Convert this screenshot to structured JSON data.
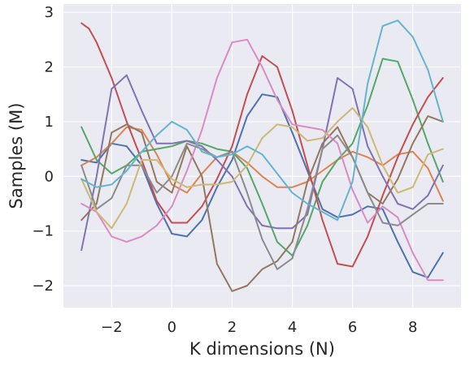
{
  "chart_data": {
    "type": "line",
    "title": "",
    "xlabel": "K dimensions (N)",
    "ylabel": "Samples (M)",
    "xlim": [
      -3.6,
      9.6
    ],
    "ylim": [
      -2.4,
      3.15
    ],
    "xticks": [
      -2,
      0,
      2,
      4,
      6,
      8
    ],
    "yticks": [
      -2,
      -1,
      0,
      1,
      2,
      3
    ],
    "xtick_labels": [
      "−2",
      "0",
      "2",
      "4",
      "6",
      "8"
    ],
    "ytick_labels": [
      "−2",
      "−1",
      "0",
      "1",
      "2",
      "3"
    ],
    "grid": true,
    "background": "#EAEAF2",
    "legend": "none",
    "series": [
      {
        "color": "#4C72B0",
        "x": [
          -3,
          -2.5,
          -2,
          -1.5,
          -1,
          -0.5,
          0,
          0.5,
          1,
          1.5,
          2,
          2.5,
          3,
          3.5,
          4,
          4.5,
          5,
          5.5,
          6,
          6.5,
          7,
          7.5,
          8,
          8.5,
          9
        ],
        "y": [
          0.3,
          0.25,
          0.6,
          0.55,
          0.2,
          -0.5,
          -1.05,
          -1.1,
          -0.8,
          -0.2,
          0.3,
          1.1,
          1.5,
          1.45,
          0.8,
          0.1,
          -0.6,
          -0.75,
          -0.7,
          -0.55,
          -0.6,
          -1.2,
          -1.75,
          -1.85,
          -1.4
        ]
      },
      {
        "color": "#DD8452",
        "x": [
          -3,
          -2.5,
          -2,
          -1.5,
          -1,
          -0.5,
          0,
          0.5,
          1,
          1.5,
          2,
          2.5,
          3,
          3.5,
          4,
          4.5,
          5,
          5.5,
          6,
          6.5,
          7,
          7.5,
          8,
          8.5,
          9
        ],
        "y": [
          0.2,
          0.35,
          0.6,
          0.9,
          0.85,
          0.4,
          -0.15,
          -0.3,
          0.05,
          0.35,
          0.45,
          0.25,
          0,
          -0.2,
          -0.2,
          -0.1,
          0.1,
          0.3,
          0.45,
          0.35,
          0.2,
          0.4,
          0.45,
          0.15,
          -0.45
        ]
      },
      {
        "color": "#55A868",
        "x": [
          -3,
          -2.5,
          -2,
          -1.5,
          -1,
          -0.5,
          0,
          0.5,
          1,
          1.5,
          2,
          2.5,
          3,
          3.5,
          4,
          4.5,
          5,
          5.5,
          6,
          6.5,
          7,
          7.5,
          8,
          8.5,
          9
        ],
        "y": [
          0.9,
          0.3,
          0.05,
          0.2,
          0.45,
          0.5,
          0.55,
          0.65,
          0.6,
          0.5,
          0.45,
          0.15,
          -0.5,
          -1.2,
          -1.45,
          -0.9,
          -0.1,
          0.3,
          0.6,
          1.3,
          2.15,
          2.1,
          1.4,
          0.6,
          -0.1
        ]
      },
      {
        "color": "#C44E52",
        "x": [
          -3,
          -2.75,
          -2.5,
          -2,
          -1.5,
          -1,
          -0.5,
          0,
          0.5,
          1,
          1.5,
          2,
          2.5,
          3,
          3.5,
          4,
          4.5,
          5,
          5.5,
          6,
          6.5,
          7,
          7.5,
          8,
          8.5,
          9
        ],
        "y": [
          2.8,
          2.7,
          2.45,
          1.8,
          1.0,
          0.3,
          -0.45,
          -0.85,
          -0.85,
          -0.55,
          -0.05,
          0.55,
          1.5,
          2.2,
          2.0,
          1.2,
          0.2,
          -0.8,
          -1.6,
          -1.65,
          -1.1,
          -0.35,
          0.35,
          0.95,
          1.45,
          1.8
        ]
      },
      {
        "color": "#8172B3",
        "x": [
          -3,
          -2.5,
          -2,
          -1.5,
          -1,
          -0.5,
          0,
          0.5,
          1,
          1.5,
          2,
          2.5,
          3,
          3.5,
          4,
          4.5,
          5,
          5.5,
          6,
          6.5,
          7,
          7.5,
          8,
          8.5,
          9
        ],
        "y": [
          -1.35,
          0.0,
          1.6,
          1.85,
          1.2,
          0.6,
          0.6,
          0.65,
          0.55,
          0.3,
          0.0,
          -0.55,
          -0.9,
          -0.95,
          -0.95,
          -0.7,
          0.5,
          1.8,
          1.6,
          0.55,
          0.0,
          -0.5,
          -0.6,
          -0.35,
          0.2
        ]
      },
      {
        "color": "#937860",
        "x": [
          -3,
          -2.5,
          -2,
          -1.5,
          -1,
          -0.5,
          0,
          0.5,
          1,
          1.5,
          2,
          2.5,
          3,
          3.5,
          4,
          4.5,
          5,
          5.5,
          6,
          6.5,
          7,
          7.5,
          8,
          8.5,
          9
        ],
        "y": [
          -0.8,
          -0.5,
          0.8,
          0.95,
          0.8,
          -0.1,
          -0.3,
          0.55,
          0.0,
          -1.6,
          -2.1,
          -2.0,
          -1.7,
          -1.55,
          -1.2,
          -0.1,
          0.6,
          0.9,
          0.35,
          -0.3,
          -0.5,
          -0.05,
          0.6,
          1.1,
          1.0
        ]
      },
      {
        "color": "#DA8BC3",
        "x": [
          -3,
          -2.5,
          -2,
          -1.5,
          -1,
          -0.5,
          0,
          0.5,
          1,
          1.5,
          2,
          2.5,
          3,
          3.5,
          4,
          4.5,
          5,
          5.5,
          6,
          6.5,
          7,
          7.5,
          8,
          8.5,
          9
        ],
        "y": [
          -0.5,
          -0.65,
          -1.1,
          -1.2,
          -1.1,
          -0.9,
          -0.55,
          0.1,
          0.85,
          1.8,
          2.45,
          2.5,
          2.0,
          1.4,
          0.95,
          0.9,
          0.85,
          0.6,
          -0.25,
          -0.85,
          -0.55,
          -0.75,
          -1.4,
          -1.9,
          -1.9
        ]
      },
      {
        "color": "#8C8C8C",
        "x": [
          -3,
          -2.5,
          -2,
          -1.5,
          -1,
          -0.5,
          0,
          0.5,
          1,
          1.5,
          2,
          2.5,
          3,
          3.5,
          4,
          4.5,
          5,
          5.5,
          6,
          6.5,
          7,
          7.5,
          8,
          8.5,
          9
        ],
        "y": [
          0.2,
          -0.6,
          -0.4,
          0.2,
          0.2,
          -0.3,
          0.0,
          0.6,
          0.5,
          0.35,
          0.45,
          -0.3,
          -1.15,
          -1.7,
          -1.5,
          -0.6,
          0.5,
          0.75,
          0.35,
          -0.3,
          -0.85,
          -0.9,
          -0.7,
          -0.5,
          -0.5
        ]
      },
      {
        "color": "#CCB974",
        "x": [
          -3,
          -2.5,
          -2,
          -1.5,
          -1,
          -0.5,
          0,
          0.5,
          1,
          1.5,
          2,
          2.5,
          3,
          3.5,
          4,
          4.5,
          5,
          5.5,
          6,
          6.5,
          7,
          7.5,
          8,
          8.5,
          9
        ],
        "y": [
          -0.05,
          -0.65,
          -0.95,
          -0.5,
          0.3,
          0.3,
          -0.05,
          -0.2,
          -0.15,
          -0.15,
          -0.1,
          0.2,
          0.7,
          0.95,
          0.9,
          0.65,
          0.7,
          1.0,
          1.25,
          0.9,
          0.2,
          -0.3,
          -0.2,
          0.4,
          0.5
        ]
      },
      {
        "color": "#64B5CD",
        "x": [
          -3,
          -2.5,
          -2,
          -1.5,
          -1,
          -0.5,
          0,
          0.5,
          1,
          1.5,
          2,
          2.5,
          3,
          3.5,
          4,
          4.5,
          5,
          5.5,
          6,
          6.5,
          7,
          7.5,
          8,
          8.5,
          9
        ],
        "y": [
          -0.05,
          -0.2,
          -0.15,
          0.1,
          0.45,
          0.75,
          1.0,
          0.85,
          0.45,
          0.35,
          0.4,
          0.55,
          0.4,
          0.05,
          -0.3,
          -0.5,
          -0.65,
          -0.8,
          -0.1,
          1.7,
          2.75,
          2.85,
          2.55,
          1.95,
          1.0
        ]
      }
    ]
  }
}
